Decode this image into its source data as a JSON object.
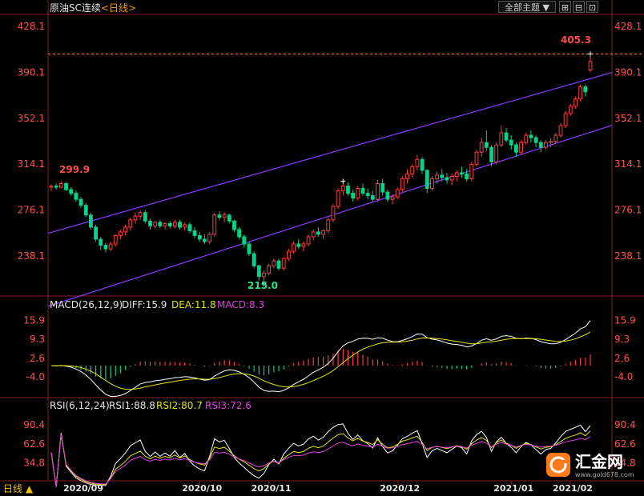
{
  "header": {
    "title": "原油SC连续",
    "period_link": "<日线>",
    "theme_dropdown": "全部主题 ▼",
    "tool_buttons": [
      "⊞",
      "⊟",
      "⊡"
    ]
  },
  "price_axis": {
    "ticks": [
      "428.1",
      "390.1",
      "352.1",
      "314.1",
      "276.1",
      "238.1"
    ],
    "tick_values": [
      428.1,
      390.1,
      352.1,
      314.1,
      276.1,
      238.1
    ],
    "range": [
      205,
      438
    ]
  },
  "annotations": {
    "high_label": "299.9",
    "low_label": "215.0",
    "last_high_label": "405.3"
  },
  "macd": {
    "params": "MACD(26,12,9)",
    "diff_label": "DIFF:15.9",
    "dea_label": "DEA:11.8",
    "macd_label": "MACD:8.3",
    "ticks": [
      "15.9",
      "9.3",
      "2.6",
      "-4.0"
    ],
    "tick_values": [
      15.9,
      9.3,
      2.6,
      -4.0
    ],
    "range": [
      -11,
      19.5
    ]
  },
  "rsi": {
    "params": "RSI(6,12,24)",
    "rsi1_label": "RSI1:88.8",
    "rsi2_label": "RSI2:80.7",
    "rsi3_label": "RSI3:72.6",
    "ticks": [
      "90.4",
      "62.6",
      "34.8"
    ],
    "tick_values": [
      90.4,
      62.6,
      34.8
    ],
    "range": [
      10,
      110
    ]
  },
  "x_axis": {
    "labels": [
      "2020/09",
      "2020/10",
      "2020/11",
      "2020/12",
      "2021/01",
      "2021/02"
    ]
  },
  "bottom_tab": "日线 ▲",
  "logo": {
    "text": "汇金网",
    "url_text": "www.gold678.com"
  },
  "colors": {
    "up": "#ff3b3b",
    "down": "#00d68a",
    "channel": "#8a3cff",
    "diff": "#ffffff",
    "dea": "#e6e600",
    "rsi3": "#e040e0",
    "logo": "#ff7a1a"
  },
  "chart_data": {
    "type": "candlestick",
    "title": "原油SC连续",
    "candles": [
      [
        295,
        297,
        292,
        296
      ],
      [
        296,
        298,
        293,
        295
      ],
      [
        295,
        299.9,
        294,
        298
      ],
      [
        298,
        299,
        292,
        293
      ],
      [
        293,
        295,
        288,
        290
      ],
      [
        290,
        292,
        283,
        285
      ],
      [
        285,
        287,
        278,
        280
      ],
      [
        280,
        282,
        270,
        272
      ],
      [
        272,
        274,
        260,
        262
      ],
      [
        262,
        264,
        250,
        252
      ],
      [
        252,
        254,
        243,
        247
      ],
      [
        247,
        249,
        241,
        244
      ],
      [
        244,
        250,
        242,
        248
      ],
      [
        248,
        256,
        246,
        255
      ],
      [
        255,
        260,
        252,
        258
      ],
      [
        258,
        264,
        255,
        262
      ],
      [
        262,
        270,
        259,
        268
      ],
      [
        268,
        274,
        265,
        271
      ],
      [
        271,
        276,
        268,
        274
      ],
      [
        274,
        276,
        265,
        267
      ],
      [
        267,
        269,
        260,
        263
      ],
      [
        263,
        267,
        261,
        266
      ],
      [
        266,
        268,
        261,
        263
      ],
      [
        263,
        266,
        260,
        265
      ],
      [
        265,
        267,
        261,
        263
      ],
      [
        263,
        268,
        261,
        266
      ],
      [
        266,
        268,
        260,
        262
      ],
      [
        262,
        266,
        259,
        264
      ],
      [
        264,
        266,
        257,
        259
      ],
      [
        259,
        262,
        253,
        255
      ],
      [
        255,
        258,
        250,
        252
      ],
      [
        252,
        256,
        248,
        250
      ],
      [
        250,
        258,
        248,
        256
      ],
      [
        256,
        274,
        254,
        272
      ],
      [
        272,
        275,
        268,
        270
      ],
      [
        270,
        274,
        266,
        272
      ],
      [
        272,
        273,
        265,
        267
      ],
      [
        267,
        268,
        258,
        260
      ],
      [
        260,
        262,
        252,
        254
      ],
      [
        254,
        256,
        245,
        248
      ],
      [
        248,
        250,
        238,
        240
      ],
      [
        240,
        242,
        228,
        230
      ],
      [
        230,
        231,
        218,
        221
      ],
      [
        221,
        226,
        215,
        224
      ],
      [
        224,
        232,
        222,
        230
      ],
      [
        230,
        236,
        228,
        234
      ],
      [
        234,
        236,
        226,
        228
      ],
      [
        228,
        237,
        226,
        236
      ],
      [
        236,
        244,
        234,
        242
      ],
      [
        242,
        250,
        240,
        248
      ],
      [
        248,
        252,
        244,
        246
      ],
      [
        246,
        250,
        242,
        248
      ],
      [
        248,
        256,
        246,
        254
      ],
      [
        254,
        260,
        251,
        258
      ],
      [
        258,
        262,
        254,
        256
      ],
      [
        256,
        260,
        252,
        259
      ],
      [
        259,
        270,
        257,
        268
      ],
      [
        268,
        281,
        266,
        279
      ],
      [
        279,
        294,
        277,
        292
      ],
      [
        292,
        300,
        288,
        296
      ],
      [
        296,
        299,
        288,
        290
      ],
      [
        290,
        293,
        283,
        286
      ],
      [
        286,
        296,
        284,
        294
      ],
      [
        294,
        298,
        288,
        290
      ],
      [
        290,
        294,
        285,
        288
      ],
      [
        288,
        292,
        283,
        285
      ],
      [
        285,
        301,
        283,
        298
      ],
      [
        298,
        302,
        288,
        291
      ],
      [
        291,
        293,
        283,
        285
      ],
      [
        285,
        289,
        281,
        287
      ],
      [
        287,
        295,
        285,
        293
      ],
      [
        293,
        304,
        291,
        302
      ],
      [
        302,
        310,
        298,
        306
      ],
      [
        306,
        314,
        303,
        312
      ],
      [
        312,
        322,
        309,
        318
      ],
      [
        318,
        320,
        306,
        309
      ],
      [
        309,
        310,
        290,
        294
      ],
      [
        294,
        304,
        292,
        302
      ],
      [
        302,
        308,
        298,
        305
      ],
      [
        305,
        310,
        300,
        303
      ],
      [
        303,
        307,
        298,
        301
      ],
      [
        301,
        306,
        297,
        304
      ],
      [
        304,
        309,
        300,
        307
      ],
      [
        307,
        312,
        303,
        306
      ],
      [
        306,
        310,
        300,
        302
      ],
      [
        302,
        316,
        300,
        314
      ],
      [
        314,
        326,
        312,
        324
      ],
      [
        324,
        336,
        320,
        332
      ],
      [
        332,
        342,
        325,
        328
      ],
      [
        328,
        330,
        312,
        316
      ],
      [
        316,
        332,
        314,
        330
      ],
      [
        330,
        346,
        328,
        340
      ],
      [
        340,
        344,
        332,
        334
      ],
      [
        334,
        338,
        326,
        330
      ],
      [
        330,
        332,
        320,
        324
      ],
      [
        324,
        334,
        322,
        332
      ],
      [
        332,
        340,
        330,
        338
      ],
      [
        338,
        342,
        332,
        336
      ],
      [
        336,
        338,
        328,
        332
      ],
      [
        332,
        334,
        324,
        328
      ],
      [
        328,
        334,
        326,
        332
      ],
      [
        332,
        336,
        328,
        333
      ],
      [
        333,
        340,
        331,
        338
      ],
      [
        338,
        348,
        336,
        346
      ],
      [
        346,
        358,
        344,
        356
      ],
      [
        356,
        364,
        354,
        362
      ],
      [
        362,
        370,
        360,
        368
      ],
      [
        368,
        380,
        366,
        378
      ],
      [
        378,
        380,
        370,
        374
      ],
      [
        392,
        405.3,
        390,
        399
      ]
    ]
  }
}
